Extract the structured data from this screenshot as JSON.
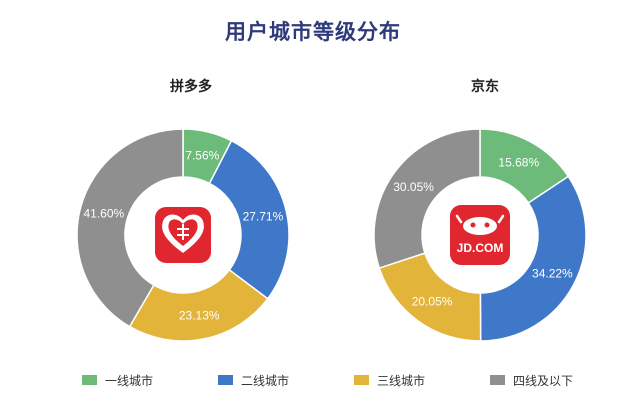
{
  "title": "用户城市等级分布",
  "colors": {
    "tier1": "#6dbb7a",
    "tier2": "#3f78c8",
    "tier3": "#e3b43a",
    "tier4": "#8f8f8f",
    "title": "#2f3a7a"
  },
  "legend": [
    {
      "label": "一线城市",
      "color": "#6dbb7a"
    },
    {
      "label": "二线城市",
      "color": "#3f78c8"
    },
    {
      "label": "三线城市",
      "color": "#e3b43a"
    },
    {
      "label": "四线及以下",
      "color": "#8f8f8f"
    }
  ],
  "chart_data": [
    {
      "type": "pie",
      "title": "拼多多",
      "donut": true,
      "center_logo": "pinduoduo-logo",
      "categories": [
        "一线城市",
        "二线城市",
        "三线城市",
        "四线及以下"
      ],
      "values": [
        7.56,
        27.71,
        23.13,
        41.6
      ],
      "value_labels": [
        "7.56%",
        "27.71%",
        "23.13%",
        "41.60%"
      ],
      "colors": [
        "#6dbb7a",
        "#3f78c8",
        "#e3b43a",
        "#8f8f8f"
      ],
      "start": "12 o'clock, clockwise"
    },
    {
      "type": "pie",
      "title": "京东",
      "donut": true,
      "center_logo": "jd-logo",
      "logo_text": "JD.COM",
      "categories": [
        "一线城市",
        "二线城市",
        "三线城市",
        "四线及以下"
      ],
      "values": [
        15.68,
        34.22,
        20.05,
        30.05
      ],
      "value_labels": [
        "15.68%",
        "34.22%",
        "20.05%",
        "30.05%"
      ],
      "colors": [
        "#6dbb7a",
        "#3f78c8",
        "#e3b43a",
        "#8f8f8f"
      ],
      "start": "12 o'clock, clockwise"
    }
  ]
}
